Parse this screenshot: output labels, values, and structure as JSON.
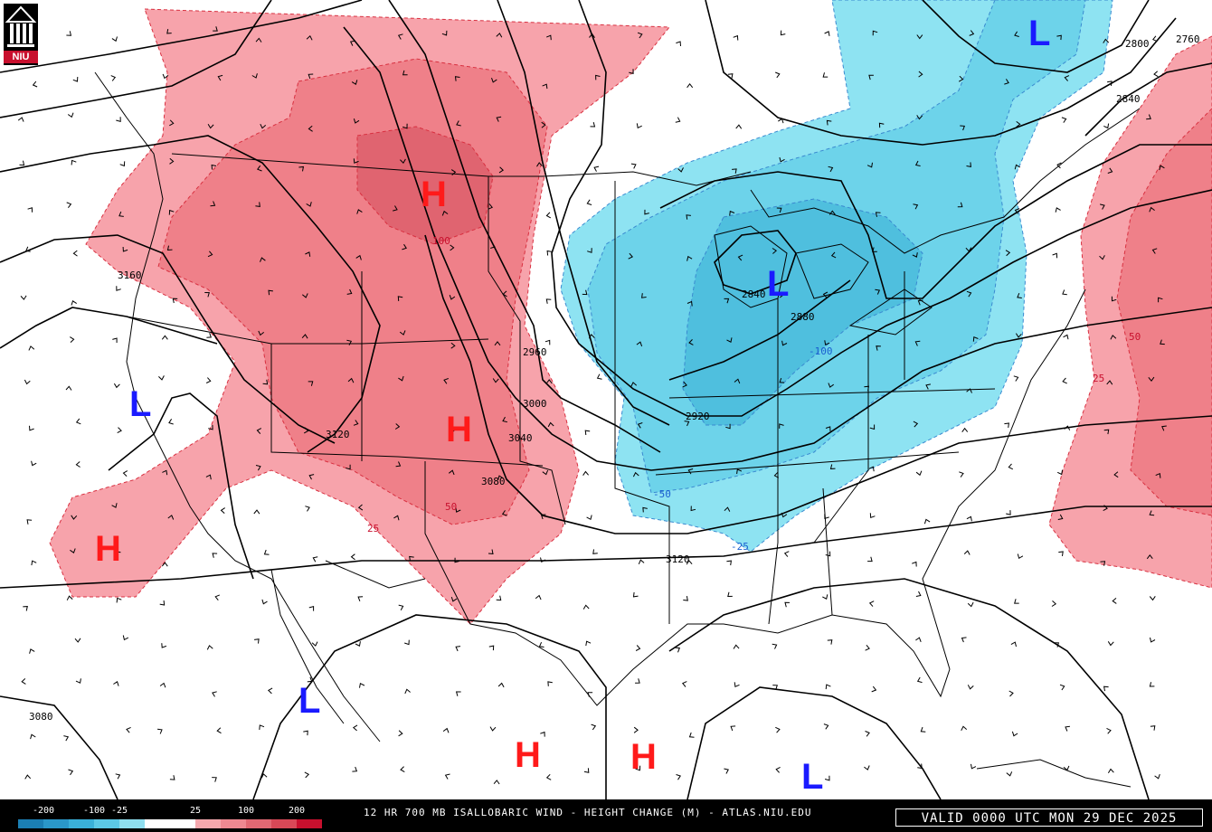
{
  "title": "12 HR 700 MB ISALLOBARIC WIND - HEIGHT CHANGE (M) - ATLAS.NIU.EDU",
  "valid": "VALID 0000 UTC MON 29 DEC 2025",
  "logo_text": "NIU",
  "legend": {
    "labels": [
      "-200",
      "-100",
      "-25",
      "25",
      "100",
      "200"
    ],
    "colors": [
      "#1b7fb4",
      "#2a97c9",
      "#3ab0d9",
      "#5cc8e6",
      "#8fdeef",
      "#ffffff",
      "#ffffff",
      "#f5a8ae",
      "#ee8891",
      "#e26873",
      "#d84857",
      "#c8102e"
    ]
  },
  "colors": {
    "rise_light": "#f7a3ab",
    "rise_mid": "#ef8089",
    "rise_dark": "#e06470",
    "fall_light": "#8ee3f2",
    "fall_mid": "#6dd3ea",
    "fall_dark": "#4fbfde",
    "high": "#ff1a1a",
    "low": "#1a1aff"
  },
  "centers": {
    "highs": [
      "H",
      "H",
      "H",
      "H",
      "H"
    ],
    "lows": [
      "L",
      "L",
      "L",
      "L",
      "L"
    ]
  },
  "contour_labels": [
    "3160",
    "3120",
    "3080",
    "3040",
    "3000",
    "2960",
    "2920",
    "2880",
    "2840",
    "2840",
    "2800",
    "2760",
    "3120",
    "3080"
  ],
  "shade_labels": [
    "100",
    "50",
    "25",
    "50",
    "25",
    "-100",
    "-50",
    "-25"
  ]
}
